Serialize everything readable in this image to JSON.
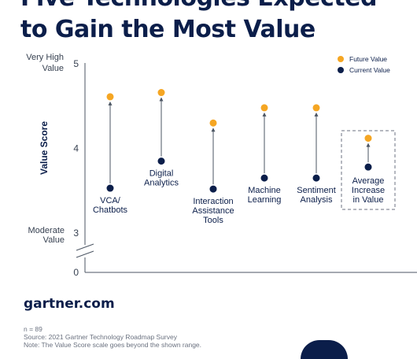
{
  "header": {
    "title_lines": [
      "Five Technologies Expected",
      "to Gain the Most Value"
    ]
  },
  "chart_data": {
    "type": "scatter",
    "ylabel": "Value Score",
    "y_ticks": [
      "0",
      "3",
      "4",
      "5"
    ],
    "y_range_labels": {
      "top": [
        "Very High",
        "Value"
      ],
      "bottom": [
        "Moderate",
        "Value"
      ]
    },
    "axis_break": true,
    "categories": [
      {
        "label": [
          "VCA/",
          "Chatbots"
        ],
        "future": 4.61,
        "current": 3.53
      },
      {
        "label": [
          "Digital",
          "Analytics"
        ],
        "future": 4.66,
        "current": 3.85
      },
      {
        "label": [
          "Interaction",
          "Assistance",
          "Tools"
        ],
        "future": 4.3,
        "current": 3.52
      },
      {
        "label": [
          "Machine",
          "Learning"
        ],
        "future": 4.48,
        "current": 3.65
      },
      {
        "label": [
          "Sentiment",
          "Analysis"
        ],
        "future": 4.48,
        "current": 3.65
      },
      {
        "label": [
          "Average",
          "Increase",
          "in Value"
        ],
        "future": 4.12,
        "current": 3.78,
        "highlighted": true
      }
    ],
    "series": [
      {
        "name": "Future Value",
        "color": "#f5a623"
      },
      {
        "name": "Current Value",
        "color": "#0b1e4a"
      }
    ],
    "legend_position": "top-right"
  },
  "brand": {
    "site": "gartner.com"
  },
  "footnotes": [
    "n = 89",
    "Source: 2021 Gartner Technology Roadmap Survey",
    "Note: The Value Score scale goes beyond the shown range."
  ]
}
